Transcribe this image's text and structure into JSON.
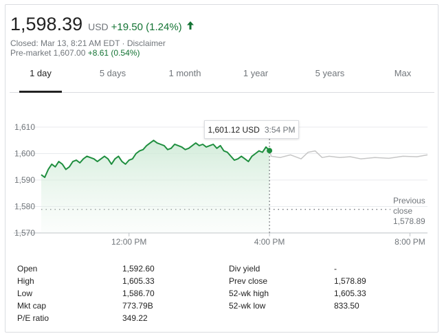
{
  "quote": {
    "price": "1,598.39",
    "currency": "USD",
    "change": "+19.50 (1.24%)",
    "closed_line": "Closed: Mar 13, 8:21 AM EDT · Disclaimer",
    "premarket_label": "Pre-market 1,607.00",
    "premarket_change": "+8.61 (0.54%)",
    "up_color": "#137333",
    "arrow_icon": "arrow-up-icon"
  },
  "tabs": [
    {
      "label": "1 day",
      "active": true
    },
    {
      "label": "5 days"
    },
    {
      "label": "1 month"
    },
    {
      "label": "1 year"
    },
    {
      "label": "5 years"
    },
    {
      "label": "Max"
    }
  ],
  "tooltip": {
    "value": "1,601.12 USD",
    "time": "3:54 PM"
  },
  "previous_close": {
    "line1": "Previous",
    "line2": "close",
    "value": "1,578.89"
  },
  "chart_data": {
    "type": "line",
    "y_ticks": [
      "1,610",
      "1,600",
      "1,590",
      "1,580",
      "1,570"
    ],
    "x_ticks": [
      "12:00 PM",
      "4:00 PM",
      "8:00 PM"
    ],
    "ylim": [
      1570,
      1610
    ],
    "xlim_hours": [
      9.5,
      20.5
    ],
    "previous_close": 1578.89,
    "grid": true,
    "colors": {
      "session": "#1e8e3e",
      "fill": "#e6f4ea",
      "after_hours": "#c6c6c6",
      "grid": "#e8eaed"
    },
    "series": [
      {
        "values": [
          [
            9.5,
            1592
          ],
          [
            9.6,
            1591
          ],
          [
            9.7,
            1594
          ],
          [
            9.8,
            1596
          ],
          [
            9.9,
            1595
          ],
          [
            10.0,
            1597
          ],
          [
            10.1,
            1596
          ],
          [
            10.2,
            1594
          ],
          [
            10.3,
            1595
          ],
          [
            10.4,
            1597
          ],
          [
            10.5,
            1597.5
          ],
          [
            10.6,
            1596.5
          ],
          [
            10.7,
            1598
          ],
          [
            10.8,
            1599
          ],
          [
            10.9,
            1598.5
          ],
          [
            11.0,
            1598
          ],
          [
            11.1,
            1597
          ],
          [
            11.2,
            1598
          ],
          [
            11.3,
            1599
          ],
          [
            11.4,
            1598
          ],
          [
            11.5,
            1596
          ],
          [
            11.6,
            1598
          ],
          [
            11.7,
            1599
          ],
          [
            11.8,
            1597
          ],
          [
            11.9,
            1596
          ],
          [
            12.0,
            1597.5
          ],
          [
            12.1,
            1598
          ],
          [
            12.2,
            1600
          ],
          [
            12.3,
            1601
          ],
          [
            12.4,
            1601.5
          ],
          [
            12.5,
            1603
          ],
          [
            12.6,
            1604
          ],
          [
            12.7,
            1605
          ],
          [
            12.8,
            1604
          ],
          [
            12.9,
            1603.5
          ],
          [
            13.0,
            1603
          ],
          [
            13.1,
            1601.5
          ],
          [
            13.2,
            1602
          ],
          [
            13.3,
            1603.5
          ],
          [
            13.4,
            1603
          ],
          [
            13.5,
            1602.5
          ],
          [
            13.6,
            1601.5
          ],
          [
            13.7,
            1602
          ],
          [
            13.8,
            1603
          ],
          [
            13.9,
            1604
          ],
          [
            14.0,
            1603
          ],
          [
            14.1,
            1603.5
          ],
          [
            14.2,
            1602.5
          ],
          [
            14.3,
            1603
          ],
          [
            14.4,
            1603.5
          ],
          [
            14.5,
            1602
          ],
          [
            14.6,
            1603
          ],
          [
            14.7,
            1601
          ],
          [
            14.8,
            1600.5
          ],
          [
            14.9,
            1599
          ],
          [
            15.0,
            1597.5
          ],
          [
            15.1,
            1598
          ],
          [
            15.2,
            1599
          ],
          [
            15.3,
            1598
          ],
          [
            15.4,
            1597
          ],
          [
            15.5,
            1599
          ],
          [
            15.6,
            1600
          ],
          [
            15.7,
            1601
          ],
          [
            15.8,
            1600.5
          ],
          [
            15.9,
            1602.5
          ],
          [
            16.0,
            1601.12
          ]
        ]
      },
      {
        "values": [
          [
            16.0,
            1601.12
          ],
          [
            16.05,
            1599
          ],
          [
            16.3,
            1598.5
          ],
          [
            16.6,
            1599.5
          ],
          [
            16.9,
            1598
          ],
          [
            17.1,
            1600.5
          ],
          [
            17.3,
            1601
          ],
          [
            17.5,
            1598.5
          ],
          [
            17.7,
            1599
          ],
          [
            18.0,
            1598.5
          ],
          [
            18.3,
            1598.8
          ],
          [
            18.6,
            1598
          ],
          [
            19.0,
            1598.5
          ],
          [
            19.4,
            1598.2
          ],
          [
            19.8,
            1599
          ],
          [
            20.2,
            1598.8
          ],
          [
            20.5,
            1599.5
          ]
        ]
      }
    ]
  },
  "stats": {
    "left": [
      {
        "label": "Open",
        "value": "1,592.60"
      },
      {
        "label": "High",
        "value": "1,605.33"
      },
      {
        "label": "Low",
        "value": "1,586.70"
      },
      {
        "label": "Mkt cap",
        "value": "773.79B"
      },
      {
        "label": "P/E ratio",
        "value": "349.22"
      }
    ],
    "right": [
      {
        "label": "Div yield",
        "value": "-"
      },
      {
        "label": "Prev close",
        "value": "1,578.89"
      },
      {
        "label": "52-wk high",
        "value": "1,605.33"
      },
      {
        "label": "52-wk low",
        "value": "833.50"
      }
    ]
  }
}
